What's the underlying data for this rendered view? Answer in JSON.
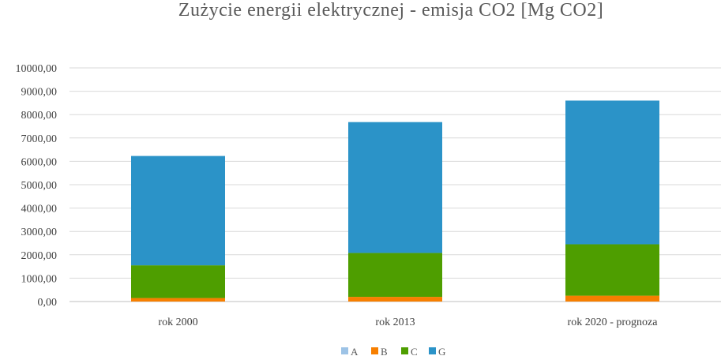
{
  "chart_data": {
    "type": "bar",
    "stacked": true,
    "title": "Zużycie energii elektrycznej - emisja CO2 [Mg CO2]",
    "categories": [
      "rok 2000",
      "rok 2013",
      "rok 2020 - prognoza"
    ],
    "series": [
      {
        "name": "A",
        "color": "#9DC3E6",
        "values": [
          0,
          0,
          0
        ]
      },
      {
        "name": "B",
        "color": "#F77F00",
        "values": [
          150,
          200,
          250
        ]
      },
      {
        "name": "C",
        "color": "#4E9E00",
        "values": [
          1400,
          1880,
          2200
        ]
      },
      {
        "name": "G",
        "color": "#2B93C8",
        "values": [
          4680,
          5600,
          6150
        ]
      }
    ],
    "ylim": [
      0,
      10000
    ],
    "yticks": [
      "0,00",
      "1000,00",
      "2000,00",
      "3000,00",
      "4000,00",
      "5000,00",
      "6000,00",
      "7000,00",
      "8000,00",
      "9000,00",
      "10000,00"
    ],
    "grid": true,
    "legend_position": "bottom"
  }
}
